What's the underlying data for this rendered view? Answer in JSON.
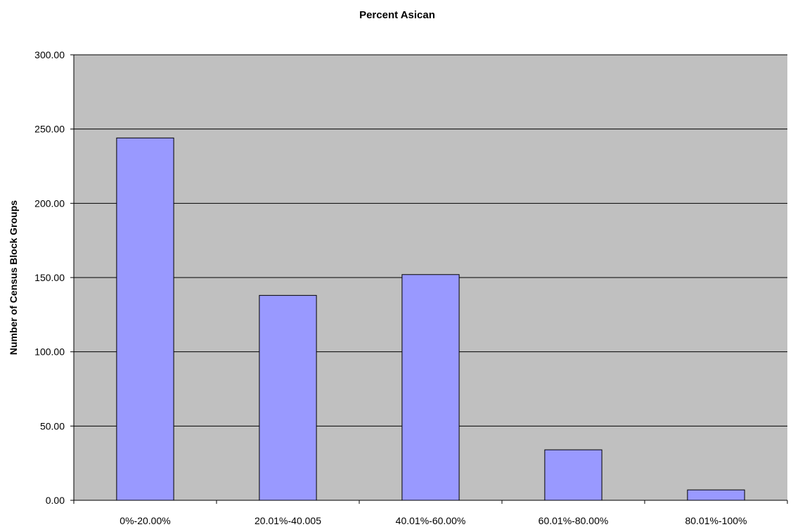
{
  "chart_data": {
    "type": "bar",
    "title": "Percent Asican",
    "xlabel": "",
    "ylabel": "Number of Census Block Groups",
    "categories": [
      "0%-20.00%",
      "20.01%-40.005",
      "40.01%-60.00%",
      "60.01%-80.00%",
      "80.01%-100%"
    ],
    "values": [
      244,
      138,
      152,
      34,
      7
    ],
    "ylim": [
      0,
      300
    ],
    "yticks": [
      "0.00",
      "50.00",
      "100.00",
      "150.00",
      "200.00",
      "250.00",
      "300.00"
    ],
    "grid": true,
    "legend": "none",
    "colors": {
      "plot_background": "#c0c0c0",
      "bar_fill": "#9999ff",
      "bar_stroke": "#000000",
      "gridline": "#000000"
    }
  }
}
